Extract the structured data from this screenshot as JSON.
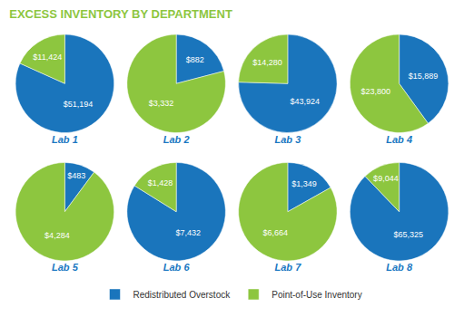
{
  "chart_data": {
    "type": "pie",
    "title": "EXCESS INVENTORY BY DEPARTMENT",
    "title_color": "#8dc63f",
    "categories": [
      "Redistributed Overstock",
      "Point-of-Use Inventory"
    ],
    "colors": [
      "#1a75bc",
      "#8dc63f"
    ],
    "data_labels": true,
    "legend": "bottom",
    "series": [
      {
        "name": "Lab 1",
        "values": [
          51194,
          11424
        ],
        "value_labels": [
          "$51,194",
          "$11,424"
        ]
      },
      {
        "name": "Lab 2",
        "values": [
          882,
          3332
        ],
        "value_labels": [
          "$882",
          "$3,332"
        ]
      },
      {
        "name": "Lab 3",
        "values": [
          43924,
          14280
        ],
        "value_labels": [
          "$43,924",
          "$14,280"
        ]
      },
      {
        "name": "Lab 4",
        "values": [
          15889,
          23800
        ],
        "value_labels": [
          "$15,889",
          "$23,800"
        ]
      },
      {
        "name": "Lab 5",
        "values": [
          483,
          4284
        ],
        "value_labels": [
          "$483",
          "$4,284"
        ]
      },
      {
        "name": "Lab 6",
        "values": [
          7432,
          1428
        ],
        "value_labels": [
          "$7,432",
          "$1,428"
        ]
      },
      {
        "name": "Lab 7",
        "values": [
          1349,
          6664
        ],
        "value_labels": [
          "$1,349",
          "$6,664"
        ]
      },
      {
        "name": "Lab 8",
        "values": [
          65325,
          9044
        ],
        "value_labels": [
          "$65,325",
          "$9,044"
        ]
      }
    ]
  }
}
